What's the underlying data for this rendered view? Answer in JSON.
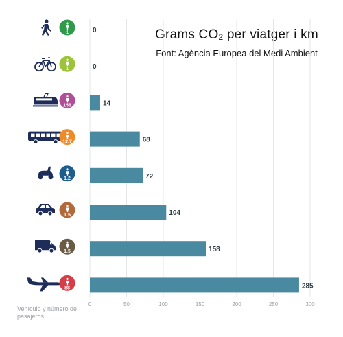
{
  "title": {
    "prefix": "Grams  CO",
    "subscript": "2",
    "suffix": " per viatger i km"
  },
  "subtitle": "Font: Agència Europea del Medi Ambient",
  "axis_caption": [
    "Vehículo y número de",
    "pasajeros"
  ],
  "colors": {
    "bar": "#4a8aa0",
    "grid": "#e3e6e8",
    "icon": "#1e2c5a"
  },
  "chart_data": {
    "type": "bar",
    "orientation": "horizontal",
    "title": "Grams CO2 per viatger i km",
    "subtitle": "Font: Agència Europea del Medi Ambient",
    "ylabel": "Vehículo y número de pasajeros",
    "xlim": [
      0,
      300
    ],
    "xticks": [
      0,
      50,
      100,
      150,
      200,
      250,
      300
    ],
    "grid": true,
    "categories": [
      {
        "vehicle": "walking-icon",
        "passengers": "1",
        "badge_color": "#2e9a4a"
      },
      {
        "vehicle": "bicycle-icon",
        "passengers": "1",
        "badge_color": "#9cc33b"
      },
      {
        "vehicle": "train-icon",
        "passengers": "156",
        "badge_color": "#b04e97"
      },
      {
        "vehicle": "bus-icon",
        "passengers": "12.7",
        "badge_color": "#ef8a2a"
      },
      {
        "vehicle": "scooter-icon",
        "passengers": "1.2",
        "badge_color": "#1f5e8c"
      },
      {
        "vehicle": "car-icon",
        "passengers": "1.5",
        "badge_color": "#b06a3c"
      },
      {
        "vehicle": "van-icon",
        "passengers": "1.5",
        "badge_color": "#6b5b45"
      },
      {
        "vehicle": "airplane-icon",
        "passengers": "88",
        "badge_color": "#d83c46"
      }
    ],
    "values": [
      0,
      0,
      14,
      68,
      72,
      104,
      158,
      285
    ]
  }
}
